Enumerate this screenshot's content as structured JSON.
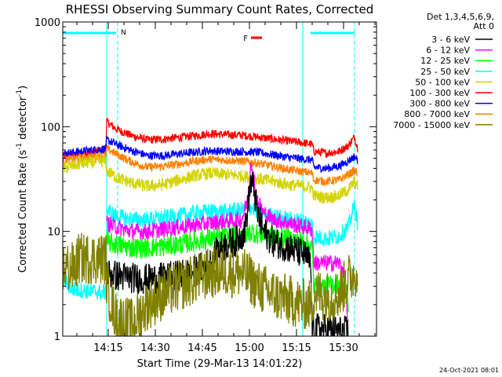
{
  "chart_data": {
    "type": "line",
    "title": "RHESSI Observing Summary Count Rates, Corrected",
    "xlabel": "Start Time (29-Mar-13 14:01:22)",
    "ylabel": "Corrected Count Rate (s⁻¹ detector⁻¹)",
    "ylabel_parts": {
      "main": "Corrected Count Rate (s",
      "sup1": "-1",
      "mid": " detector",
      "sup2": "-1",
      "end": ")"
    },
    "y_scale": "log",
    "ylim": [
      1,
      1000
    ],
    "y_ticks": [
      {
        "value": 1,
        "label": "1"
      },
      {
        "value": 10,
        "label": "10"
      },
      {
        "value": 100,
        "label": "100"
      },
      {
        "value": 1000,
        "label": "1000"
      }
    ],
    "x_range_minutes": [
      0,
      100
    ],
    "x_ticks": [
      {
        "value": 14.5,
        "label": "14:15"
      },
      {
        "value": 29.5,
        "label": "14:30"
      },
      {
        "value": 44.5,
        "label": "14:45"
      },
      {
        "value": 59.5,
        "label": "15:00"
      },
      {
        "value": 74.5,
        "label": "15:15"
      },
      {
        "value": 89.5,
        "label": "15:30"
      }
    ],
    "legend": {
      "placement": "right",
      "header": [
        "Det 1,3,4,5,6,9,",
        "Att 0"
      ],
      "entries": [
        {
          "name": "3 - 6 keV",
          "color": "#000000"
        },
        {
          "name": "6 - 12 keV",
          "color": "#ff00ff"
        },
        {
          "name": "12 - 25 keV",
          "color": "#00ff00"
        },
        {
          "name": "25 - 50 keV",
          "color": "#00ffff"
        },
        {
          "name": "50 - 100 keV",
          "color": "#d4d400"
        },
        {
          "name": "100 - 300 keV",
          "color": "#ff0000"
        },
        {
          "name": "300 - 800 keV",
          "color": "#0000ff"
        },
        {
          "name": "800 - 7000 keV",
          "color": "#ff8000"
        },
        {
          "name": "7000 - 15000 keV",
          "color": "#808000"
        }
      ]
    },
    "flags": [
      {
        "label": "N",
        "color": "#00ffff",
        "intervals": [
          [
            0,
            17
          ],
          [
            79,
            93
          ]
        ]
      },
      {
        "label": "F",
        "color": "#ff0000",
        "intervals": [
          [
            60,
            63.5
          ]
        ]
      }
    ],
    "night_boundaries": [
      14,
      17.5,
      76.5,
      93
    ],
    "series": [
      {
        "name": "100 - 300 keV",
        "color": "#ff0000",
        "noise": 0.04,
        "points": [
          [
            0,
            52
          ],
          [
            5,
            55
          ],
          [
            10,
            58
          ],
          [
            13.8,
            60
          ],
          [
            14,
            112
          ],
          [
            17,
            95
          ],
          [
            22,
            82
          ],
          [
            27,
            75
          ],
          [
            32,
            76
          ],
          [
            37,
            79
          ],
          [
            42,
            82
          ],
          [
            47,
            86
          ],
          [
            52,
            84
          ],
          [
            57,
            83
          ],
          [
            62,
            80
          ],
          [
            67,
            76
          ],
          [
            72,
            73
          ],
          [
            77,
            70
          ],
          [
            79.5,
            68
          ],
          [
            80,
            58
          ],
          [
            84,
            56
          ],
          [
            88,
            58
          ],
          [
            91,
            66
          ],
          [
            93,
            80
          ],
          [
            94,
            62
          ]
        ]
      },
      {
        "name": "300 - 800 keV",
        "color": "#0000ff",
        "noise": 0.04,
        "points": [
          [
            0,
            55
          ],
          [
            5,
            58
          ],
          [
            10,
            60
          ],
          [
            13.8,
            62
          ],
          [
            14,
            75
          ],
          [
            17,
            68
          ],
          [
            22,
            59
          ],
          [
            27,
            53
          ],
          [
            32,
            53
          ],
          [
            37,
            55
          ],
          [
            42,
            57
          ],
          [
            47,
            59
          ],
          [
            52,
            58
          ],
          [
            57,
            58
          ],
          [
            62,
            57
          ],
          [
            67,
            54
          ],
          [
            72,
            51
          ],
          [
            77,
            49
          ],
          [
            79.5,
            48
          ],
          [
            80,
            41
          ],
          [
            84,
            40
          ],
          [
            88,
            42
          ],
          [
            91,
            47
          ],
          [
            93,
            52
          ],
          [
            94,
            48
          ]
        ]
      },
      {
        "name": "800 - 7000 keV",
        "color": "#ff8000",
        "noise": 0.04,
        "points": [
          [
            0,
            48
          ],
          [
            5,
            50
          ],
          [
            10,
            52
          ],
          [
            13.8,
            53
          ],
          [
            14,
            62
          ],
          [
            17,
            55
          ],
          [
            22,
            46
          ],
          [
            27,
            41
          ],
          [
            32,
            42
          ],
          [
            37,
            44
          ],
          [
            42,
            47
          ],
          [
            47,
            49
          ],
          [
            52,
            48
          ],
          [
            57,
            47
          ],
          [
            62,
            45
          ],
          [
            67,
            42
          ],
          [
            72,
            39
          ],
          [
            77,
            37
          ],
          [
            79.5,
            36
          ],
          [
            80,
            31
          ],
          [
            84,
            30
          ],
          [
            88,
            31
          ],
          [
            91,
            35
          ],
          [
            93,
            38
          ],
          [
            94,
            36
          ]
        ]
      },
      {
        "name": "50 - 100 keV",
        "color": "#d4d400",
        "noise": 0.06,
        "points": [
          [
            0,
            40
          ],
          [
            5,
            44
          ],
          [
            10,
            46
          ],
          [
            13.8,
            47
          ],
          [
            14,
            38
          ],
          [
            17,
            33
          ],
          [
            22,
            29
          ],
          [
            27,
            27
          ],
          [
            32,
            28
          ],
          [
            37,
            31
          ],
          [
            42,
            34
          ],
          [
            47,
            36
          ],
          [
            52,
            35
          ],
          [
            57,
            34
          ],
          [
            62,
            32
          ],
          [
            67,
            30
          ],
          [
            72,
            28
          ],
          [
            77,
            27
          ],
          [
            79.5,
            26
          ],
          [
            80,
            22
          ],
          [
            84,
            21
          ],
          [
            88,
            22
          ],
          [
            91,
            25
          ],
          [
            93,
            30
          ],
          [
            94,
            26
          ]
        ]
      },
      {
        "name": "25 - 50 keV",
        "color": "#00ffff",
        "noise": 0.08,
        "points": [
          [
            0,
            3.5
          ],
          [
            3,
            2.8
          ],
          [
            13.8,
            2.6
          ],
          [
            14,
            16
          ],
          [
            17,
            14
          ],
          [
            22,
            13
          ],
          [
            27,
            13
          ],
          [
            32,
            13.5
          ],
          [
            37,
            14
          ],
          [
            42,
            15
          ],
          [
            47,
            15.5
          ],
          [
            52,
            15.5
          ],
          [
            57,
            16
          ],
          [
            60,
            17
          ],
          [
            63,
            15
          ],
          [
            67,
            14
          ],
          [
            72,
            13
          ],
          [
            77,
            12.5
          ],
          [
            79.5,
            11.5
          ],
          [
            80,
            9
          ],
          [
            84,
            8.5
          ],
          [
            88,
            9
          ],
          [
            91,
            11
          ],
          [
            93,
            18
          ],
          [
            94,
            12
          ]
        ]
      },
      {
        "name": "6 - 12 keV",
        "color": "#ff00ff",
        "noise": 0.08,
        "points": [
          [
            14,
            12
          ],
          [
            17,
            11
          ],
          [
            22,
            10
          ],
          [
            27,
            10
          ],
          [
            32,
            10.5
          ],
          [
            37,
            11
          ],
          [
            42,
            11.5
          ],
          [
            47,
            12
          ],
          [
            52,
            12.5
          ],
          [
            57,
            13
          ],
          [
            59,
            20
          ],
          [
            60,
            50
          ],
          [
            61,
            30
          ],
          [
            62,
            20
          ],
          [
            64,
            15
          ],
          [
            67,
            13
          ],
          [
            72,
            12
          ],
          [
            77,
            11
          ],
          [
            79.5,
            10.5
          ],
          [
            80,
            5
          ],
          [
            84,
            5
          ],
          [
            88,
            5
          ],
          [
            90,
            4
          ],
          [
            91,
            1.1
          ]
        ]
      },
      {
        "name": "12 - 25 keV",
        "color": "#00ff00",
        "noise": 0.1,
        "points": [
          [
            14,
            8
          ],
          [
            17,
            7.5
          ],
          [
            22,
            7
          ],
          [
            27,
            7
          ],
          [
            32,
            7.2
          ],
          [
            37,
            7.5
          ],
          [
            42,
            8
          ],
          [
            47,
            8.5
          ],
          [
            52,
            8.8
          ],
          [
            57,
            9
          ],
          [
            60,
            10
          ],
          [
            62,
            9.5
          ],
          [
            67,
            9
          ],
          [
            72,
            8.5
          ],
          [
            77,
            8
          ],
          [
            79.5,
            7
          ],
          [
            80,
            3
          ],
          [
            84,
            3
          ],
          [
            88,
            3.2
          ],
          [
            90,
            3
          ],
          [
            91,
            2
          ]
        ]
      },
      {
        "name": "3 - 6 keV",
        "color": "#000000",
        "noise": 0.15,
        "points": [
          [
            14,
            4
          ],
          [
            17,
            3.8
          ],
          [
            22,
            3.6
          ],
          [
            27,
            3.5
          ],
          [
            32,
            3.6
          ],
          [
            37,
            3.8
          ],
          [
            42,
            4.2
          ],
          [
            47,
            5
          ],
          [
            50,
            7
          ],
          [
            55,
            8
          ],
          [
            58,
            10
          ],
          [
            60,
            30
          ],
          [
            61,
            25
          ],
          [
            62,
            15
          ],
          [
            64,
            10
          ],
          [
            67,
            8
          ],
          [
            72,
            7
          ],
          [
            77,
            6
          ],
          [
            79,
            5
          ],
          [
            79.5,
            1.2
          ],
          [
            91,
            1.1
          ]
        ]
      },
      {
        "name": "7000 - 15000 keV",
        "color": "#808000",
        "noise": 0.25,
        "points": [
          [
            0,
            4.5
          ],
          [
            4,
            4.5
          ],
          [
            5,
            5.5
          ],
          [
            13.8,
            5.5
          ],
          [
            14,
            3
          ],
          [
            17,
            1.5
          ],
          [
            22,
            1.3
          ],
          [
            27,
            2
          ],
          [
            32,
            2.5
          ],
          [
            37,
            3
          ],
          [
            42,
            3.5
          ],
          [
            47,
            4
          ],
          [
            52,
            4.2
          ],
          [
            57,
            4
          ],
          [
            60,
            3.5
          ],
          [
            62,
            3
          ],
          [
            67,
            2.5
          ],
          [
            72,
            2.2
          ],
          [
            77,
            2
          ],
          [
            79.5,
            2
          ],
          [
            80,
            2.6
          ],
          [
            84,
            2.4
          ],
          [
            88,
            2.5
          ],
          [
            91,
            3.5
          ],
          [
            93,
            4
          ],
          [
            94,
            4.5
          ]
        ]
      }
    ]
  },
  "footer": {
    "date": "24-Oct-2021 08:01"
  }
}
